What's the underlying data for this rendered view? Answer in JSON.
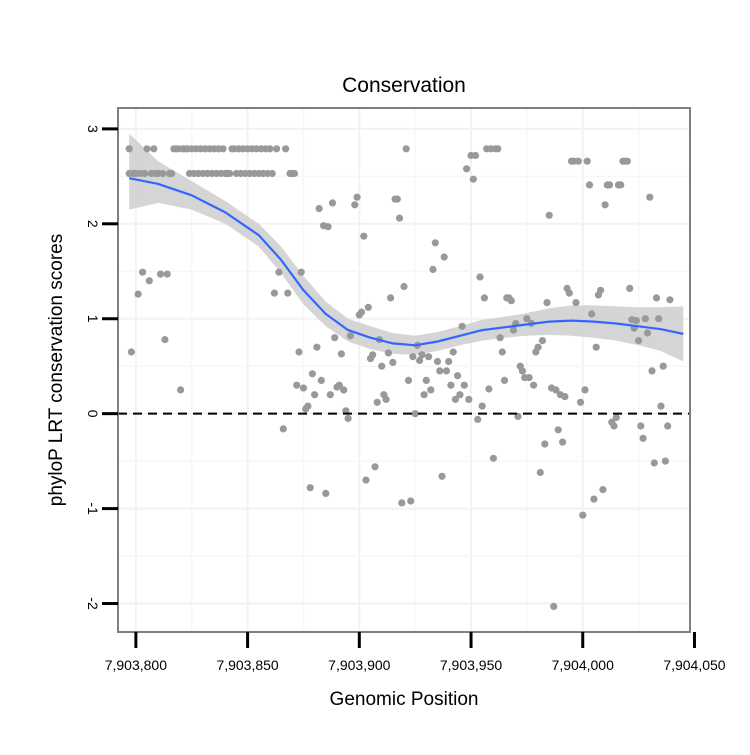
{
  "chart_data": {
    "type": "scatter",
    "title": "Conservation",
    "xlabel": "Genomic Position",
    "ylabel": "phyloP LRT conservation scores",
    "xlim": [
      7903792,
      7904048
    ],
    "ylim": [
      -2.3,
      3.22
    ],
    "x_ticks": [
      7903800,
      7903850,
      7903900,
      7903950,
      7904000,
      7904050
    ],
    "x_tick_labels": [
      "7,903,800",
      "7,903,850",
      "7,903,900",
      "7,903,950",
      "7,904,000",
      "7,904,050"
    ],
    "y_ticks": [
      -2,
      -1,
      0,
      1,
      2,
      3
    ],
    "y_tick_labels": [
      "-2",
      "-1",
      "0",
      "1",
      "2",
      "3"
    ],
    "grid": true,
    "reference_line": {
      "y": 0,
      "style": "dashed",
      "color": "#000000"
    },
    "point_color": "#999999",
    "smooth_color": "#3366FF",
    "band_color": "#d0d0d0",
    "smooth": {
      "x": [
        7903797,
        7903810,
        7903825,
        7903840,
        7903855,
        7903865,
        7903875,
        7903885,
        7903895,
        7903905,
        7903915,
        7903925,
        7903935,
        7903945,
        7903955,
        7903965,
        7903975,
        7903985,
        7903995,
        7904005,
        7904015,
        7904025,
        7904035,
        7904045
      ],
      "y": [
        2.48,
        2.42,
        2.3,
        2.12,
        1.88,
        1.62,
        1.3,
        1.05,
        0.88,
        0.8,
        0.74,
        0.72,
        0.76,
        0.82,
        0.88,
        0.91,
        0.94,
        0.97,
        0.98,
        0.97,
        0.95,
        0.92,
        0.89,
        0.84
      ],
      "lower": [
        2.15,
        2.22,
        2.15,
        2.0,
        1.76,
        1.48,
        1.15,
        0.92,
        0.76,
        0.68,
        0.63,
        0.62,
        0.66,
        0.72,
        0.77,
        0.8,
        0.82,
        0.83,
        0.82,
        0.8,
        0.77,
        0.72,
        0.66,
        0.55
      ],
      "upper": [
        2.95,
        2.66,
        2.45,
        2.24,
        2.0,
        1.76,
        1.45,
        1.18,
        1.0,
        0.92,
        0.85,
        0.82,
        0.86,
        0.92,
        0.99,
        1.02,
        1.06,
        1.11,
        1.14,
        1.14,
        1.13,
        1.12,
        1.12,
        1.13
      ]
    },
    "points": [
      [
        7903797,
        2.79
      ],
      [
        7903797,
        2.53
      ],
      [
        7903798,
        0.65
      ],
      [
        7903799,
        2.53
      ],
      [
        7903800,
        2.53
      ],
      [
        7903801,
        1.26
      ],
      [
        7903802,
        2.53
      ],
      [
        7903803,
        1.49
      ],
      [
        7903804,
        2.53
      ],
      [
        7903805,
        2.79
      ],
      [
        7903806,
        1.4
      ],
      [
        7903807,
        2.53
      ],
      [
        7903808,
        2.79
      ],
      [
        7903809,
        2.53
      ],
      [
        7903810,
        2.53
      ],
      [
        7903811,
        1.47
      ],
      [
        7903812,
        2.53
      ],
      [
        7903813,
        0.78
      ],
      [
        7903814,
        1.47
      ],
      [
        7903815,
        2.53
      ],
      [
        7903816,
        2.53
      ],
      [
        7903817,
        2.79
      ],
      [
        7903818,
        2.79
      ],
      [
        7903819,
        2.79
      ],
      [
        7903820,
        0.25
      ],
      [
        7903821,
        2.79
      ],
      [
        7903822,
        2.79
      ],
      [
        7903823,
        2.79
      ],
      [
        7903824,
        2.53
      ],
      [
        7903825,
        2.79
      ],
      [
        7903826,
        2.53
      ],
      [
        7903827,
        2.79
      ],
      [
        7903828,
        2.53
      ],
      [
        7903829,
        2.79
      ],
      [
        7903830,
        2.53
      ],
      [
        7903831,
        2.79
      ],
      [
        7903832,
        2.53
      ],
      [
        7903833,
        2.79
      ],
      [
        7903834,
        2.53
      ],
      [
        7903835,
        2.79
      ],
      [
        7903836,
        2.53
      ],
      [
        7903837,
        2.79
      ],
      [
        7903838,
        2.53
      ],
      [
        7903839,
        2.79
      ],
      [
        7903840,
        2.53
      ],
      [
        7903841,
        2.53
      ],
      [
        7903842,
        2.53
      ],
      [
        7903843,
        2.79
      ],
      [
        7903844,
        2.79
      ],
      [
        7903845,
        2.53
      ],
      [
        7903846,
        2.79
      ],
      [
        7903847,
        2.53
      ],
      [
        7903848,
        2.79
      ],
      [
        7903849,
        2.53
      ],
      [
        7903850,
        2.79
      ],
      [
        7903851,
        2.53
      ],
      [
        7903852,
        2.79
      ],
      [
        7903853,
        2.53
      ],
      [
        7903854,
        2.79
      ],
      [
        7903855,
        2.53
      ],
      [
        7903856,
        2.79
      ],
      [
        7903857,
        2.53
      ],
      [
        7903858,
        2.79
      ],
      [
        7903859,
        2.53
      ],
      [
        7903860,
        2.79
      ],
      [
        7903861,
        2.53
      ],
      [
        7903862,
        1.27
      ],
      [
        7903863,
        2.79
      ],
      [
        7903864,
        1.49
      ],
      [
        7903866,
        -0.16
      ],
      [
        7903867,
        2.79
      ],
      [
        7903868,
        1.27
      ],
      [
        7903869,
        2.53
      ],
      [
        7903870,
        2.53
      ],
      [
        7903871,
        2.53
      ],
      [
        7903872,
        0.3
      ],
      [
        7903873,
        0.65
      ],
      [
        7903874,
        1.49
      ],
      [
        7903875,
        0.27
      ],
      [
        7903876,
        0.05
      ],
      [
        7903877,
        0.08
      ],
      [
        7903878,
        -0.78
      ],
      [
        7903879,
        0.42
      ],
      [
        7903880,
        0.2
      ],
      [
        7903881,
        0.7
      ],
      [
        7903882,
        2.16
      ],
      [
        7903883,
        0.35
      ],
      [
        7903884,
        1.98
      ],
      [
        7903885,
        -0.84
      ],
      [
        7903886,
        1.97
      ],
      [
        7903887,
        0.2
      ],
      [
        7903888,
        2.22
      ],
      [
        7903889,
        0.8
      ],
      [
        7903890,
        0.28
      ],
      [
        7903891,
        0.3
      ],
      [
        7903892,
        0.63
      ],
      [
        7903893,
        0.25
      ],
      [
        7903894,
        0.03
      ],
      [
        7903895,
        -0.05
      ],
      [
        7903896,
        0.82
      ],
      [
        7903898,
        2.2
      ],
      [
        7903899,
        2.28
      ],
      [
        7903900,
        1.04
      ],
      [
        7903901,
        1.07
      ],
      [
        7903902,
        1.87
      ],
      [
        7903903,
        -0.7
      ],
      [
        7903904,
        1.12
      ],
      [
        7903905,
        0.58
      ],
      [
        7903906,
        0.62
      ],
      [
        7903907,
        -0.56
      ],
      [
        7903908,
        0.12
      ],
      [
        7903909,
        0.78
      ],
      [
        7903910,
        0.5
      ],
      [
        7903911,
        0.2
      ],
      [
        7903912,
        0.15
      ],
      [
        7903913,
        0.64
      ],
      [
        7903914,
        1.22
      ],
      [
        7903915,
        0.54
      ],
      [
        7903916,
        2.26
      ],
      [
        7903917,
        2.26
      ],
      [
        7903918,
        2.06
      ],
      [
        7903919,
        -0.94
      ],
      [
        7903920,
        1.34
      ],
      [
        7903921,
        2.79
      ],
      [
        7903922,
        0.35
      ],
      [
        7903923,
        -0.92
      ],
      [
        7903924,
        0.6
      ],
      [
        7903925,
        0.0
      ],
      [
        7903926,
        0.72
      ],
      [
        7903927,
        0.56
      ],
      [
        7903928,
        0.62
      ],
      [
        7903929,
        0.2
      ],
      [
        7903930,
        0.35
      ],
      [
        7903931,
        0.6
      ],
      [
        7903932,
        0.25
      ],
      [
        7903933,
        1.52
      ],
      [
        7903934,
        1.8
      ],
      [
        7903935,
        0.55
      ],
      [
        7903936,
        0.45
      ],
      [
        7903937,
        -0.66
      ],
      [
        7903938,
        1.65
      ],
      [
        7903939,
        0.45
      ],
      [
        7903940,
        0.55
      ],
      [
        7903941,
        0.3
      ],
      [
        7903942,
        0.65
      ],
      [
        7903943,
        0.15
      ],
      [
        7903944,
        0.4
      ],
      [
        7903945,
        0.2
      ],
      [
        7903946,
        0.92
      ],
      [
        7903947,
        0.3
      ],
      [
        7903948,
        2.58
      ],
      [
        7903949,
        0.15
      ],
      [
        7903950,
        2.72
      ],
      [
        7903951,
        2.47
      ],
      [
        7903952,
        2.72
      ],
      [
        7903953,
        -0.06
      ],
      [
        7903954,
        1.44
      ],
      [
        7903955,
        0.08
      ],
      [
        7903956,
        1.22
      ],
      [
        7903957,
        2.79
      ],
      [
        7903958,
        0.26
      ],
      [
        7903959,
        2.79
      ],
      [
        7903960,
        -0.47
      ],
      [
        7903961,
        2.79
      ],
      [
        7903962,
        2.79
      ],
      [
        7903963,
        0.8
      ],
      [
        7903964,
        0.65
      ],
      [
        7903965,
        0.35
      ],
      [
        7903966,
        1.22
      ],
      [
        7903967,
        1.22
      ],
      [
        7903968,
        1.19
      ],
      [
        7903969,
        0.88
      ],
      [
        7903970,
        0.95
      ],
      [
        7903971,
        -0.03
      ],
      [
        7903972,
        0.5
      ],
      [
        7903973,
        0.45
      ],
      [
        7903974,
        0.38
      ],
      [
        7903975,
        1.0
      ],
      [
        7903976,
        0.38
      ],
      [
        7903977,
        0.95
      ],
      [
        7903978,
        0.3
      ],
      [
        7903979,
        0.65
      ],
      [
        7903980,
        0.7
      ],
      [
        7903981,
        -0.62
      ],
      [
        7903982,
        0.77
      ],
      [
        7903983,
        -0.32
      ],
      [
        7903984,
        1.17
      ],
      [
        7903985,
        2.09
      ],
      [
        7903986,
        0.27
      ],
      [
        7903987,
        -2.03
      ],
      [
        7903988,
        0.25
      ],
      [
        7903989,
        -0.17
      ],
      [
        7903990,
        0.2
      ],
      [
        7903991,
        -0.3
      ],
      [
        7903992,
        0.18
      ],
      [
        7903993,
        1.32
      ],
      [
        7903994,
        1.27
      ],
      [
        7903995,
        2.66
      ],
      [
        7903996,
        2.66
      ],
      [
        7903997,
        1.17
      ],
      [
        7903998,
        2.66
      ],
      [
        7903999,
        0.12
      ],
      [
        7904000,
        -1.07
      ],
      [
        7904001,
        0.25
      ],
      [
        7904002,
        2.66
      ],
      [
        7904003,
        2.41
      ],
      [
        7904004,
        1.05
      ],
      [
        7904005,
        -0.9
      ],
      [
        7904006,
        0.7
      ],
      [
        7904007,
        1.25
      ],
      [
        7904008,
        1.3
      ],
      [
        7904009,
        -0.8
      ],
      [
        7904010,
        2.2
      ],
      [
        7904011,
        2.41
      ],
      [
        7904012,
        2.41
      ],
      [
        7904013,
        -0.09
      ],
      [
        7904014,
        -0.13
      ],
      [
        7904015,
        -0.04
      ],
      [
        7904016,
        2.41
      ],
      [
        7904017,
        2.41
      ],
      [
        7904018,
        2.66
      ],
      [
        7904019,
        2.66
      ],
      [
        7904020,
        2.66
      ],
      [
        7904021,
        1.32
      ],
      [
        7904022,
        0.99
      ],
      [
        7904023,
        0.9
      ],
      [
        7904024,
        0.98
      ],
      [
        7904025,
        0.77
      ],
      [
        7904026,
        -0.13
      ],
      [
        7904027,
        -0.26
      ],
      [
        7904028,
        1.0
      ],
      [
        7904029,
        0.85
      ],
      [
        7904030,
        2.28
      ],
      [
        7904031,
        0.45
      ],
      [
        7904032,
        -0.52
      ],
      [
        7904033,
        1.22
      ],
      [
        7904034,
        1.0
      ],
      [
        7904035,
        0.08
      ],
      [
        7904036,
        0.5
      ],
      [
        7904037,
        -0.5
      ],
      [
        7904038,
        -0.13
      ],
      [
        7904039,
        1.2
      ]
    ]
  }
}
